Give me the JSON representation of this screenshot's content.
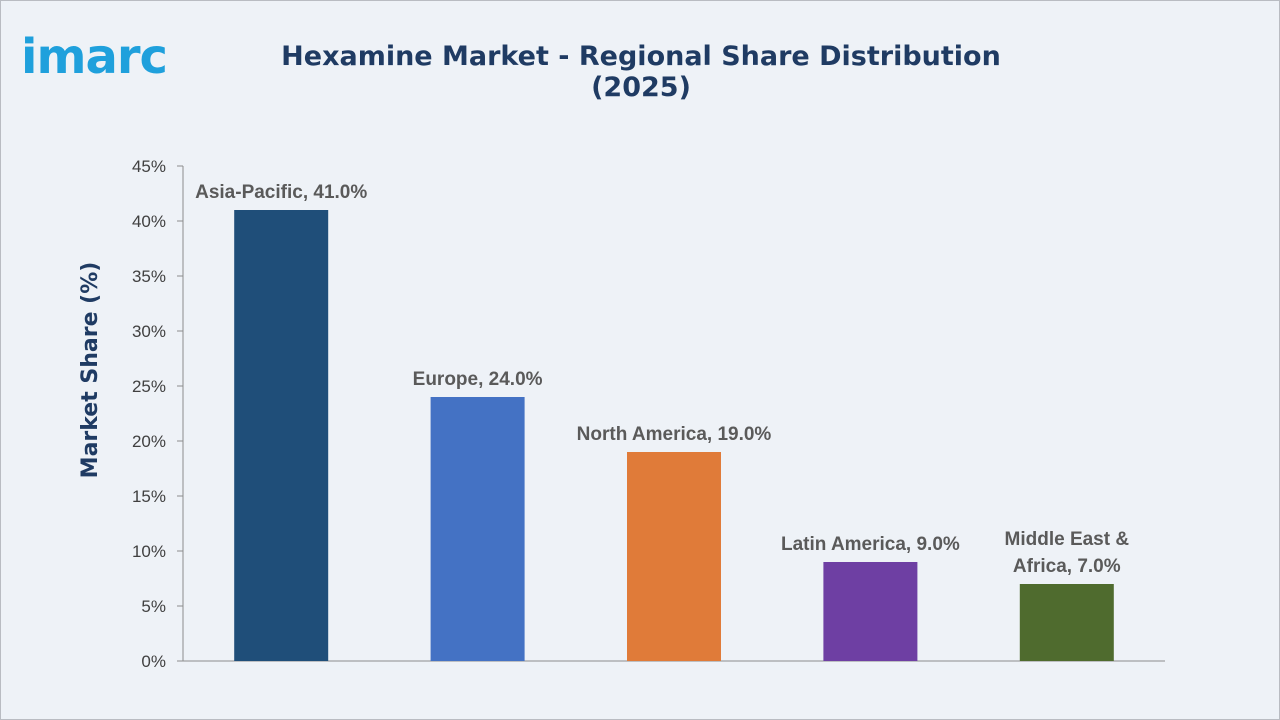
{
  "header": {
    "logo_text": "imarc",
    "title": "Hexamine Market - Regional Share Distribution (2025)"
  },
  "chart_data": {
    "type": "bar",
    "title": "Hexamine Market - Regional Share Distribution (2025)",
    "xlabel": "",
    "ylabel": "Market Share (%)",
    "ylim": [
      0,
      45
    ],
    "ytick_labels": [
      "0%",
      "5%",
      "10%",
      "15%",
      "20%",
      "25%",
      "30%",
      "35%",
      "40%",
      "45%"
    ],
    "categories": [
      "Asia-Pacific",
      "Europe",
      "North America",
      "Latin America",
      "Middle East & Africa"
    ],
    "values": [
      41.0,
      24.0,
      19.0,
      9.0,
      7.0
    ],
    "data_labels": [
      [
        "Asia-Pacific, 41.0%"
      ],
      [
        "Europe, 24.0%"
      ],
      [
        "North America, 19.0%"
      ],
      [
        "Latin America, 9.0%"
      ],
      [
        "Middle East &",
        "Africa, 7.0%"
      ]
    ],
    "colors": [
      "#1f4e79",
      "#4472c4",
      "#e07b39",
      "#6e3fa3",
      "#4f6b2e"
    ],
    "grid": false,
    "legend": "none"
  }
}
